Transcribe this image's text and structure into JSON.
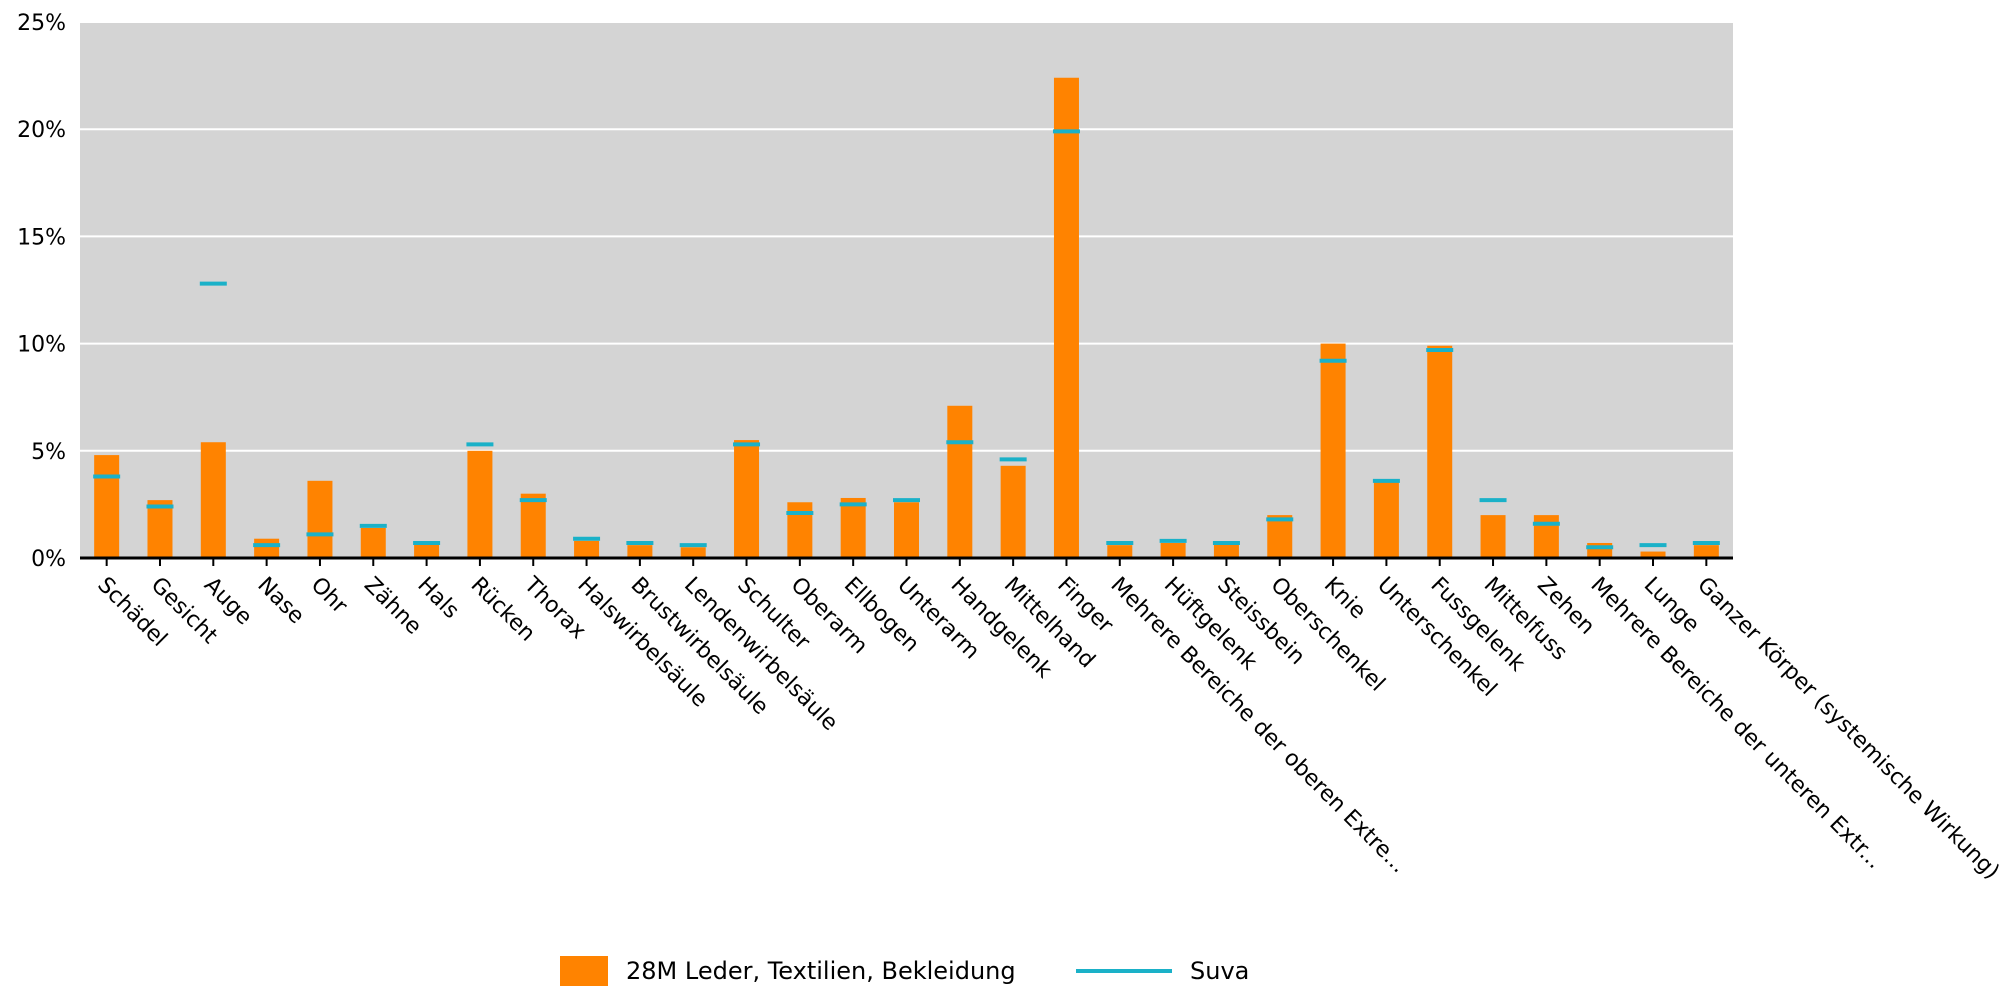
{
  "chart_data": {
    "type": "bar",
    "categories": [
      "Schädel",
      "Gesicht",
      "Auge",
      "Nase",
      "Ohr",
      "Zähne",
      "Hals",
      "Rücken",
      "Thorax",
      "Halswirbelsäule",
      "Brustwirbelsäule",
      "Lendenwirbelsäule",
      "Schulter",
      "Oberarm",
      "Ellbogen",
      "Unterarm",
      "Handgelenk",
      "Mittelhand",
      "Finger",
      "Mehrere Bereiche der oberen Extre...",
      "Hüftgelenk",
      "Steissbein",
      "Oberschenkel",
      "Knie",
      "Unterschenkel",
      "Fussgelenk",
      "Mittelfuss",
      "Zehen",
      "Mehrere Bereiche der unteren Extr...",
      "Lunge",
      "Ganzer Körper (systemische Wirkung)"
    ],
    "series": [
      {
        "name": "28M Leder, Textilien, Bekleidung",
        "type": "bar",
        "color": "#ff8300",
        "values": [
          4.8,
          2.7,
          5.4,
          0.9,
          3.6,
          1.4,
          0.7,
          5.0,
          3.0,
          0.8,
          0.6,
          0.5,
          5.5,
          2.6,
          2.8,
          2.6,
          7.1,
          4.3,
          22.4,
          0.6,
          0.7,
          0.7,
          2.0,
          10.0,
          3.6,
          9.9,
          2.0,
          2.0,
          0.7,
          0.3,
          0.6
        ]
      },
      {
        "name": "Suva",
        "type": "marker",
        "color": "#1ab1c8",
        "values": [
          3.8,
          2.4,
          12.8,
          0.6,
          1.1,
          1.5,
          0.7,
          5.3,
          2.7,
          0.9,
          0.7,
          0.6,
          5.3,
          2.1,
          2.5,
          2.7,
          5.4,
          4.6,
          19.9,
          0.7,
          0.8,
          0.7,
          1.8,
          9.2,
          3.6,
          9.7,
          2.7,
          1.6,
          0.5,
          0.6,
          0.7
        ]
      }
    ],
    "ylim": [
      0,
      25
    ],
    "yticks": [
      "0%",
      "5%",
      "10%",
      "15%",
      "20%",
      "25%"
    ],
    "ytick_values": [
      0,
      5,
      10,
      15,
      20,
      25
    ],
    "grid": true,
    "legend_position": "bottom",
    "plot_background": "#d4d4d4"
  }
}
